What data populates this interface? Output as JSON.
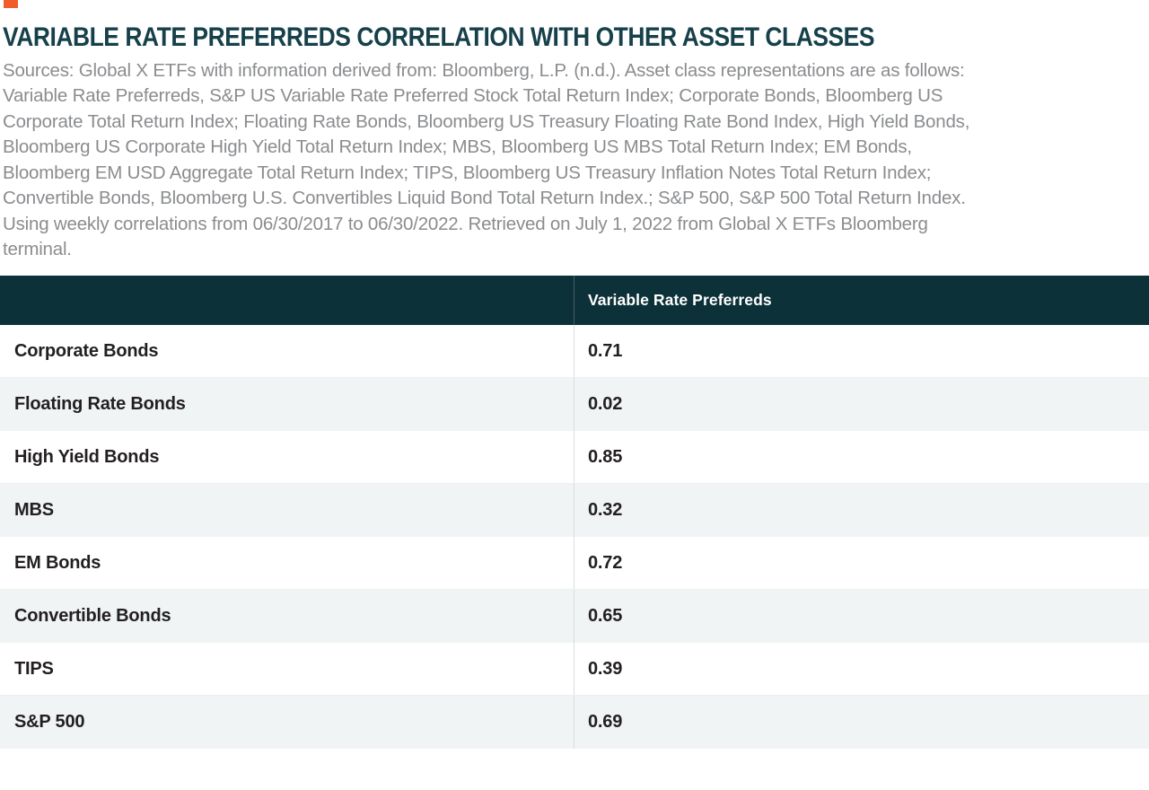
{
  "header": {
    "title": "VARIABLE RATE PREFERREDS CORRELATION WITH OTHER ASSET CLASSES"
  },
  "source": {
    "lines": [
      "Sources: Global X ETFs with information derived from: Bloomberg, L.P. (n.d.). Asset class representations are as follows:",
      "Variable Rate Preferreds, S&P US Variable Rate Preferred Stock Total Return Index; Corporate Bonds, Bloomberg US",
      "Corporate Total Return Index; Floating Rate Bonds, Bloomberg US Treasury Floating Rate Bond Index, High Yield Bonds,",
      "Bloomberg US Corporate High Yield Total Return Index; MBS, Bloomberg US MBS Total Return Index; EM Bonds,",
      "Bloomberg EM USD Aggregate Total Return Index; TIPS, Bloomberg US Treasury Inflation Notes Total Return Index;",
      "Convertible Bonds, Bloomberg U.S. Convertibles Liquid Bond Total Return Index.; S&P 500, S&P 500 Total Return Index.",
      "Using weekly correlations from 06/30/2017 to 06/30/2022. Retrieved on July 1, 2022 from Global X ETFs Bloomberg",
      "terminal."
    ]
  },
  "table": {
    "column_header": "Variable Rate Preferreds",
    "rows": [
      {
        "label": "Corporate Bonds",
        "value": "0.71"
      },
      {
        "label": "Floating Rate Bonds",
        "value": "0.02"
      },
      {
        "label": "High Yield Bonds",
        "value": "0.85"
      },
      {
        "label": "MBS",
        "value": "0.32"
      },
      {
        "label": "EM Bonds",
        "value": "0.72"
      },
      {
        "label": "Convertible Bonds",
        "value": "0.65"
      },
      {
        "label": "TIPS",
        "value": "0.39"
      },
      {
        "label": "S&P 500",
        "value": "0.69"
      }
    ]
  },
  "chart_data": {
    "type": "table",
    "title": "VARIABLE RATE PREFERREDS CORRELATION WITH OTHER ASSET CLASSES",
    "columns": [
      "",
      "Variable Rate Preferreds"
    ],
    "rows": [
      [
        "Corporate Bonds",
        0.71
      ],
      [
        "Floating Rate Bonds",
        0.02
      ],
      [
        "High Yield Bonds",
        0.85
      ],
      [
        "MBS",
        0.32
      ],
      [
        "EM Bonds",
        0.72
      ],
      [
        "Convertible Bonds",
        0.65
      ],
      [
        "TIPS",
        0.39
      ],
      [
        "S&P 500",
        0.69
      ]
    ],
    "source_note": "Sources: Global X ETFs with information derived from: Bloomberg, L.P. (n.d.). Asset class representations are as follows: Variable Rate Preferreds, S&P US Variable Rate Preferred Stock Total Return Index; Corporate Bonds, Bloomberg US Corporate Total Return Index; Floating Rate Bonds, Bloomberg US Treasury Floating Rate Bond Index, High Yield Bonds, Bloomberg US Corporate High Yield Total Return Index; MBS, Bloomberg US MBS Total Return Index; EM Bonds, Bloomberg EM USD Aggregate Total Return Index; TIPS, Bloomberg US Treasury Inflation Notes Total Return Index; Convertible Bonds, Bloomberg U.S. Convertibles Liquid Bond Total Return Index.; S&P 500, S&P 500 Total Return Index. Using weekly correlations from 06/30/2017 to 06/30/2022. Retrieved on July 1, 2022 from Global X ETFs Bloomberg terminal."
  },
  "colors": {
    "accent_orange": "#F15C2B",
    "title_teal": "#16404A",
    "table_header_bg": "#0D3138",
    "row_alt_bg": "#F0F4F5",
    "source_gray": "#8A8C8F"
  }
}
